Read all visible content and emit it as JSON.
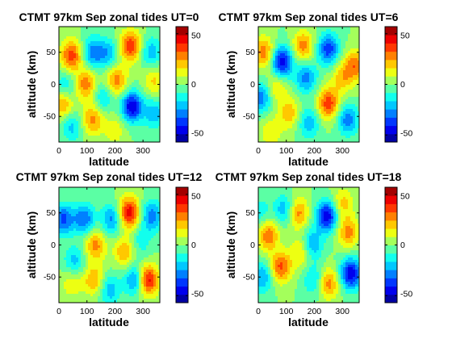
{
  "chart_data": [
    {
      "type": "heatmap",
      "title": "CTMT 97km Sep zonal tides UT=0",
      "xlabel": "latitude",
      "ylabel": "altitude (km)",
      "xlim": [
        0,
        360
      ],
      "ylim": [
        -90,
        90
      ],
      "xticks": [
        0,
        100,
        200,
        300
      ],
      "yticks": [
        -50,
        0,
        50
      ],
      "colorbar": {
        "ticks": [
          -50,
          0,
          50
        ],
        "range": [
          -57,
          57
        ],
        "colormap": "jet"
      },
      "blobs": [
        {
          "x": 45,
          "y": 45,
          "value": 38
        },
        {
          "x": 120,
          "y": 50,
          "value": -28
        },
        {
          "x": 175,
          "y": 48,
          "value": -22
        },
        {
          "x": 255,
          "y": 60,
          "value": 40
        },
        {
          "x": 330,
          "y": 50,
          "value": -22
        },
        {
          "x": 95,
          "y": 0,
          "value": 30
        },
        {
          "x": 205,
          "y": 5,
          "value": 30
        },
        {
          "x": 25,
          "y": -5,
          "value": -20
        },
        {
          "x": 340,
          "y": 5,
          "value": 18
        },
        {
          "x": 260,
          "y": -35,
          "value": -48
        },
        {
          "x": 15,
          "y": -30,
          "value": 30
        },
        {
          "x": 120,
          "y": -55,
          "value": 28
        },
        {
          "x": 45,
          "y": -65,
          "value": -20
        },
        {
          "x": 340,
          "y": -45,
          "value": -22
        },
        {
          "x": 160,
          "y": -20,
          "value": -18
        },
        {
          "x": 200,
          "y": -70,
          "value": 14
        }
      ]
    },
    {
      "type": "heatmap",
      "title": "CTMT 97km Sep zonal tides UT=6",
      "xlabel": "latitude",
      "ylabel": "altitude (km)",
      "xlim": [
        0,
        360
      ],
      "ylim": [
        -90,
        90
      ],
      "xticks": [
        0,
        100,
        200,
        300
      ],
      "yticks": [
        -50,
        0,
        50
      ],
      "colorbar": {
        "ticks": [
          -50,
          0,
          50
        ],
        "range": [
          -57,
          57
        ],
        "colormap": "jet"
      },
      "blobs": [
        {
          "x": 85,
          "y": 35,
          "value": -48
        },
        {
          "x": 250,
          "y": 55,
          "value": -38
        },
        {
          "x": 20,
          "y": 50,
          "value": 30
        },
        {
          "x": 160,
          "y": 60,
          "value": 28
        },
        {
          "x": 345,
          "y": 30,
          "value": 30
        },
        {
          "x": 170,
          "y": 10,
          "value": -28
        },
        {
          "x": 10,
          "y": -20,
          "value": -30
        },
        {
          "x": 250,
          "y": -30,
          "value": 38
        },
        {
          "x": 110,
          "y": -45,
          "value": 22
        },
        {
          "x": 65,
          "y": -5,
          "value": 18
        },
        {
          "x": 320,
          "y": -55,
          "value": -30
        },
        {
          "x": 180,
          "y": -60,
          "value": -22
        },
        {
          "x": 300,
          "y": 10,
          "value": 20
        },
        {
          "x": 45,
          "y": -75,
          "value": 15
        }
      ]
    },
    {
      "type": "heatmap",
      "title": "CTMT 97km Sep zonal tides UT=12",
      "xlabel": "latitude",
      "ylabel": "altitude (km)",
      "xlim": [
        0,
        360
      ],
      "ylim": [
        -90,
        90
      ],
      "xticks": [
        0,
        100,
        200,
        300
      ],
      "yticks": [
        -50,
        0,
        50
      ],
      "colorbar": {
        "ticks": [
          -50,
          0,
          50
        ],
        "range": [
          -57,
          57
        ],
        "colormap": "jet"
      },
      "blobs": [
        {
          "x": 250,
          "y": 50,
          "value": 48
        },
        {
          "x": 315,
          "y": -55,
          "value": 50
        },
        {
          "x": 15,
          "y": 40,
          "value": -35
        },
        {
          "x": 90,
          "y": 40,
          "value": -32
        },
        {
          "x": 190,
          "y": 40,
          "value": -28
        },
        {
          "x": 330,
          "y": 45,
          "value": -30
        },
        {
          "x": 130,
          "y": 0,
          "value": 28
        },
        {
          "x": 55,
          "y": -25,
          "value": -20
        },
        {
          "x": 235,
          "y": -10,
          "value": 25
        },
        {
          "x": 275,
          "y": -55,
          "value": -34
        },
        {
          "x": 125,
          "y": -55,
          "value": 25
        },
        {
          "x": 45,
          "y": -60,
          "value": 14
        },
        {
          "x": 180,
          "y": -70,
          "value": -22
        },
        {
          "x": 290,
          "y": 5,
          "value": -14
        }
      ]
    },
    {
      "type": "heatmap",
      "title": "CTMT 97km Sep zonal tides UT=18",
      "xlabel": "latitude",
      "ylabel": "altitude (km)",
      "xlim": [
        0,
        360
      ],
      "ylim": [
        -90,
        90
      ],
      "xticks": [
        0,
        100,
        200,
        300
      ],
      "yticks": [
        -50,
        0,
        50
      ],
      "colorbar": {
        "ticks": [
          -50,
          0,
          50
        ],
        "range": [
          -57,
          57
        ],
        "colormap": "jet"
      },
      "blobs": [
        {
          "x": 245,
          "y": 45,
          "value": -48
        },
        {
          "x": 330,
          "y": -45,
          "value": -48
        },
        {
          "x": 35,
          "y": 15,
          "value": 32
        },
        {
          "x": 80,
          "y": -35,
          "value": 35
        },
        {
          "x": 140,
          "y": 50,
          "value": 30
        },
        {
          "x": 95,
          "y": 55,
          "value": -25
        },
        {
          "x": 190,
          "y": 0,
          "value": -28
        },
        {
          "x": 320,
          "y": 20,
          "value": 28
        },
        {
          "x": 155,
          "y": -10,
          "value": 22
        },
        {
          "x": 15,
          "y": -50,
          "value": -25
        },
        {
          "x": 250,
          "y": -60,
          "value": 30
        },
        {
          "x": 5,
          "y": 50,
          "value": -15
        },
        {
          "x": 200,
          "y": -55,
          "value": -20
        },
        {
          "x": 300,
          "y": 65,
          "value": 20
        }
      ]
    }
  ]
}
